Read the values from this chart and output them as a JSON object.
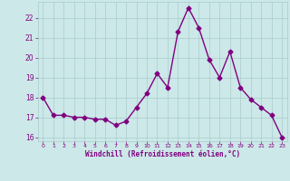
{
  "x": [
    0,
    1,
    2,
    3,
    4,
    5,
    6,
    7,
    8,
    9,
    10,
    11,
    12,
    13,
    14,
    15,
    16,
    17,
    18,
    19,
    20,
    21,
    22,
    23
  ],
  "y": [
    18.0,
    17.1,
    17.1,
    17.0,
    17.0,
    16.9,
    16.9,
    16.6,
    16.8,
    17.5,
    18.2,
    19.2,
    18.5,
    21.3,
    22.5,
    21.5,
    19.9,
    19.0,
    20.3,
    18.5,
    17.9,
    17.5,
    17.1,
    16.0
  ],
  "xlabel": "Windchill (Refroidissement éolien,°C)",
  "xlim": [
    -0.5,
    23.5
  ],
  "ylim": [
    15.8,
    22.8
  ],
  "yticks": [
    16,
    17,
    18,
    19,
    20,
    21,
    22
  ],
  "xticks": [
    0,
    1,
    2,
    3,
    4,
    5,
    6,
    7,
    8,
    9,
    10,
    11,
    12,
    13,
    14,
    15,
    16,
    17,
    18,
    19,
    20,
    21,
    22,
    23
  ],
  "line_color": "#800080",
  "marker_color": "#800080",
  "bg_color": "#cce8e8",
  "grid_color": "#aacccc",
  "axes_bg": "#cce8e8",
  "tick_label_color": "#800080",
  "xlabel_color": "#800080",
  "marker": "D",
  "markersize": 2.5,
  "linewidth": 1.0
}
